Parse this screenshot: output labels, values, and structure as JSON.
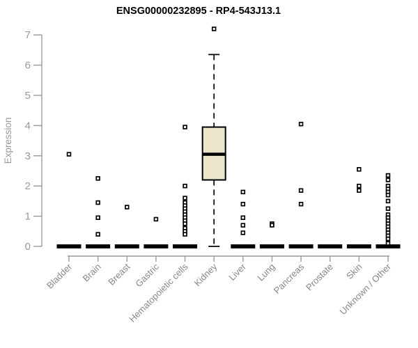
{
  "chart_data": {
    "type": "boxplot",
    "title": "ENSG00000232895 - RP4-543J13.1",
    "xlabel": "",
    "ylabel": "Expression",
    "ylim": [
      0,
      7
    ],
    "yticks": [
      0,
      1,
      2,
      3,
      4,
      5,
      6,
      7
    ],
    "grid": false,
    "legend": "none",
    "categories": [
      "Bladder",
      "Brain",
      "Breast",
      "Gastric",
      "Hematopoietic cells",
      "Kidney",
      "Liver",
      "Lung",
      "Pancreas",
      "Prostate",
      "Skin",
      "Unknown / Other"
    ],
    "boxes": [
      {
        "category": "Bladder",
        "q1": 0,
        "median": 0,
        "q3": 0,
        "whisker_low": 0,
        "whisker_high": 0,
        "outliers": [
          3.05
        ]
      },
      {
        "category": "Brain",
        "q1": 0,
        "median": 0,
        "q3": 0,
        "whisker_low": 0,
        "whisker_high": 0,
        "outliers": [
          2.25,
          1.45,
          0.95,
          0.4
        ]
      },
      {
        "category": "Breast",
        "q1": 0,
        "median": 0,
        "q3": 0,
        "whisker_low": 0,
        "whisker_high": 0,
        "outliers": [
          1.3
        ]
      },
      {
        "category": "Gastric",
        "q1": 0,
        "median": 0,
        "q3": 0,
        "whisker_low": 0,
        "whisker_high": 0,
        "outliers": [
          0.9
        ]
      },
      {
        "category": "Hematopoietic cells",
        "q1": 0,
        "median": 0,
        "q3": 0,
        "whisker_low": 0,
        "whisker_high": 0,
        "outliers": [
          3.95,
          2.0,
          1.6,
          1.45,
          1.35,
          1.25,
          1.15,
          1.05,
          0.95,
          0.85,
          0.75,
          0.6,
          0.5,
          0.4
        ]
      },
      {
        "category": "Kidney",
        "q1": 2.2,
        "median": 3.05,
        "q3": 3.95,
        "whisker_low": 0,
        "whisker_high": 6.35,
        "outliers": [
          7.2
        ]
      },
      {
        "category": "Liver",
        "q1": 0,
        "median": 0,
        "q3": 0,
        "whisker_low": 0,
        "whisker_high": 0,
        "outliers": [
          1.8,
          1.4,
          0.95,
          0.7,
          0.45
        ]
      },
      {
        "category": "Lung",
        "q1": 0,
        "median": 0,
        "q3": 0,
        "whisker_low": 0,
        "whisker_high": 0,
        "outliers": [
          0.75,
          0.7
        ]
      },
      {
        "category": "Pancreas",
        "q1": 0,
        "median": 0,
        "q3": 0,
        "whisker_low": 0,
        "whisker_high": 0,
        "outliers": [
          4.05,
          1.85,
          1.4
        ]
      },
      {
        "category": "Prostate",
        "q1": 0,
        "median": 0,
        "q3": 0,
        "whisker_low": 0,
        "whisker_high": 0,
        "outliers": []
      },
      {
        "category": "Skin",
        "q1": 0,
        "median": 0,
        "q3": 0,
        "whisker_low": 0,
        "whisker_high": 0,
        "outliers": [
          2.55,
          2.0,
          1.85
        ]
      },
      {
        "category": "Unknown / Other",
        "q1": 0,
        "median": 0,
        "q3": 0,
        "whisker_low": 0,
        "whisker_high": 0,
        "outliers": [
          2.35,
          2.2,
          2.0,
          1.9,
          1.8,
          1.7,
          1.5,
          1.25,
          1.05,
          0.95,
          0.85,
          0.75,
          0.65,
          0.55,
          0.45,
          0.35,
          0.25,
          0.1
        ]
      }
    ],
    "colors": {
      "background": "#FFFFFF",
      "box_fill": "#EBE6CB",
      "box_stroke": "#000000",
      "median": "#000000",
      "outlier_stroke": "#000000",
      "outlier_fill": "#FFFFFF",
      "axis": "#999999",
      "y_tick_label": "#999999",
      "x_tick_label": "#888888",
      "title": "#000000"
    }
  }
}
